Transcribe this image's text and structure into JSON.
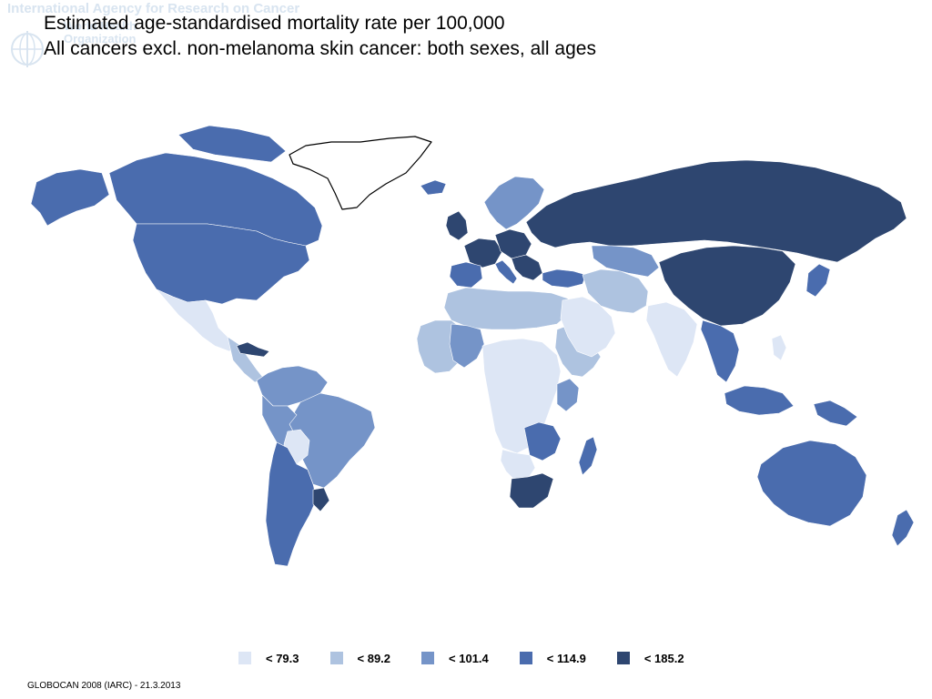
{
  "watermark": {
    "agency": "International Agency for Research on Cancer",
    "who": "World Health Organization"
  },
  "title": {
    "line1": "Estimated age-standardised mortality rate per 100,000",
    "line2": "All cancers excl. non-melanoma skin cancer: both sexes, all ages"
  },
  "legend": [
    {
      "label": "< 79.3",
      "color": "#dde6f5"
    },
    {
      "label": "< 89.2",
      "color": "#aec3e0"
    },
    {
      "label": "< 101.4",
      "color": "#7594c8"
    },
    {
      "label": "< 114.9",
      "color": "#4a6cae"
    },
    {
      "label": "< 185.2",
      "color": "#2e4670"
    }
  ],
  "footer": "GLOBOCAN 2008 (IARC) - 21.3.2013",
  "map": {
    "regions": [
      {
        "name": "alaska",
        "class": 3
      },
      {
        "name": "canada",
        "class": 3
      },
      {
        "name": "canadian-islands",
        "class": 3
      },
      {
        "name": "usa",
        "class": 3
      },
      {
        "name": "greenland",
        "class": -1
      },
      {
        "name": "mexico",
        "class": 0
      },
      {
        "name": "central-america",
        "class": 1
      },
      {
        "name": "cuba",
        "class": 4
      },
      {
        "name": "colombia-venezuela",
        "class": 2
      },
      {
        "name": "brazil",
        "class": 2
      },
      {
        "name": "peru",
        "class": 2
      },
      {
        "name": "bolivia",
        "class": 0
      },
      {
        "name": "argentina-chile",
        "class": 3
      },
      {
        "name": "uruguay",
        "class": 4
      },
      {
        "name": "iceland",
        "class": 3
      },
      {
        "name": "uk-ireland",
        "class": 4
      },
      {
        "name": "scandinavia",
        "class": 2
      },
      {
        "name": "western-europe",
        "class": 4
      },
      {
        "name": "iberia",
        "class": 3
      },
      {
        "name": "central-europe",
        "class": 4
      },
      {
        "name": "italy",
        "class": 3
      },
      {
        "name": "balkans",
        "class": 4
      },
      {
        "name": "russia",
        "class": 4
      },
      {
        "name": "turkey",
        "class": 3
      },
      {
        "name": "north-africa",
        "class": 1
      },
      {
        "name": "west-africa",
        "class": 1
      },
      {
        "name": "mali-niger",
        "class": 2
      },
      {
        "name": "central-africa",
        "class": 0
      },
      {
        "name": "east-africa",
        "class": 1
      },
      {
        "name": "kenya",
        "class": 2
      },
      {
        "name": "southern-africa-mid",
        "class": 3
      },
      {
        "name": "namibia-botswana",
        "class": 0
      },
      {
        "name": "south-africa",
        "class": 4
      },
      {
        "name": "madagascar",
        "class": 3
      },
      {
        "name": "arabia",
        "class": 0
      },
      {
        "name": "iran-central-asia",
        "class": 1
      },
      {
        "name": "kazakhstan",
        "class": 2
      },
      {
        "name": "india",
        "class": 0
      },
      {
        "name": "china-mongolia",
        "class": 4
      },
      {
        "name": "southeast-asia",
        "class": 3
      },
      {
        "name": "japan",
        "class": 3
      },
      {
        "name": "philippines",
        "class": 0
      },
      {
        "name": "indonesia",
        "class": 3
      },
      {
        "name": "papua",
        "class": 3
      },
      {
        "name": "australia",
        "class": 3
      },
      {
        "name": "new-zealand",
        "class": 3
      }
    ]
  }
}
